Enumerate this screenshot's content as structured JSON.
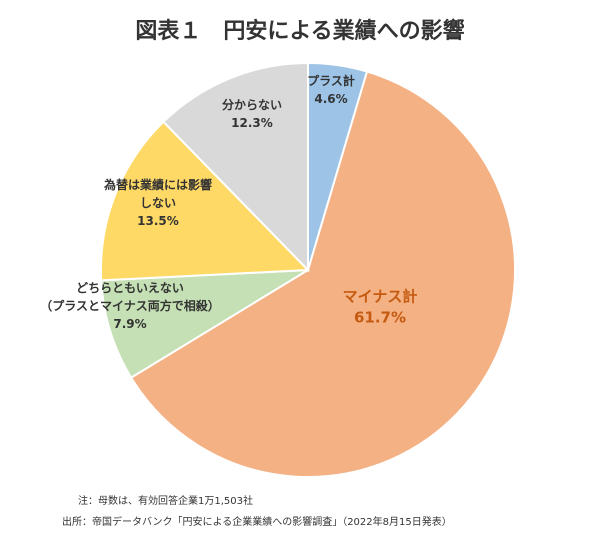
{
  "chart_data": {
    "type": "pie",
    "title": "図表１　円安による業績への影響",
    "slices": [
      {
        "label_lines": [
          "プラス計"
        ],
        "value": 4.6,
        "value_label": "4.6%",
        "color": "#9dc3e6"
      },
      {
        "label_lines": [
          "マイナス計"
        ],
        "value": 61.7,
        "value_label": "61.7%",
        "color": "#f4b183"
      },
      {
        "label_lines": [
          "どちらともいえない",
          "（プラスとマイナス両方で相殺）"
        ],
        "value": 7.9,
        "value_label": "7.9%",
        "color": "#c5e0b4"
      },
      {
        "label_lines": [
          "為替は業績には影響",
          "しない"
        ],
        "value": 13.5,
        "value_label": "13.5%",
        "color": "#ffd966"
      },
      {
        "label_lines": [
          "分からない"
        ],
        "value": 12.3,
        "value_label": "12.3%",
        "color": "#d9d9d9"
      }
    ],
    "label_color_emphasis": "#c55a11"
  },
  "notes": {
    "note1": "注：母数は、有効回答企業1万1,503社",
    "source": "出所：帝国データバンク「円安による企業業績への影響調査」（2022年8月15日発表）"
  }
}
